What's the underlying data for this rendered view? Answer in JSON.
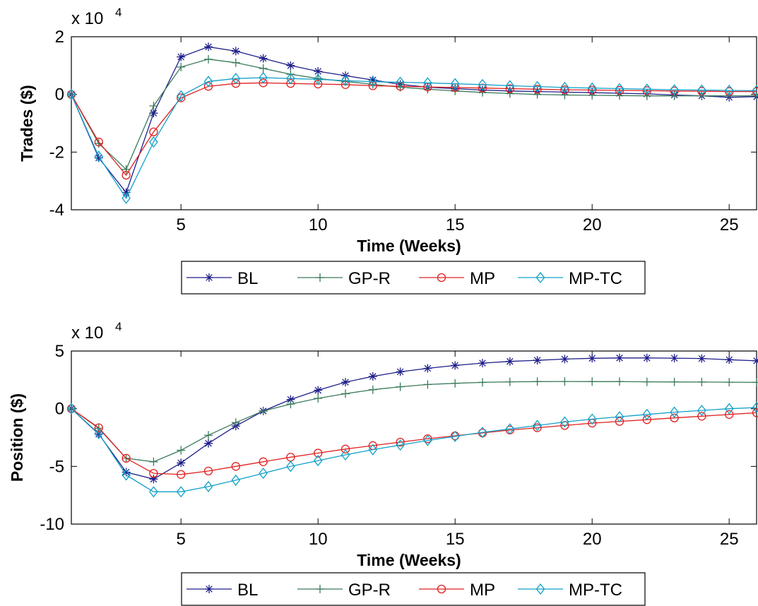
{
  "chart_data": [
    {
      "type": "line",
      "title": "",
      "xlabel": "Time (Weeks)",
      "ylabel": "Trades ($)",
      "y_multiplier_label": "x 10",
      "y_multiplier_exponent": "4",
      "xlim": [
        1,
        26
      ],
      "ylim": [
        -4,
        2
      ],
      "xticks": [
        5,
        10,
        15,
        20,
        25
      ],
      "yticks": [
        -4,
        -2,
        0,
        2
      ],
      "grid": false,
      "legend_position": "below",
      "x": [
        1,
        2,
        3,
        4,
        5,
        6,
        7,
        8,
        9,
        10,
        11,
        12,
        13,
        14,
        15,
        16,
        17,
        18,
        19,
        20,
        21,
        22,
        23,
        24,
        25,
        26
      ],
      "series": [
        {
          "name": "BL",
          "color": "#1f1f8a",
          "marker": "star",
          "values": [
            0,
            -2.2,
            -3.4,
            -0.65,
            1.3,
            1.65,
            1.5,
            1.25,
            1.0,
            0.8,
            0.65,
            0.5,
            0.35,
            0.25,
            0.2,
            0.15,
            0.12,
            0.1,
            0.08,
            0.06,
            0.04,
            0.02,
            -0.02,
            -0.05,
            -0.1,
            -0.08
          ]
        },
        {
          "name": "GP-R",
          "color": "#3a7a5a",
          "marker": "plus",
          "values": [
            0,
            -1.7,
            -2.6,
            -0.4,
            0.95,
            1.22,
            1.1,
            0.9,
            0.7,
            0.55,
            0.45,
            0.35,
            0.25,
            0.18,
            0.12,
            0.07,
            0.03,
            0.0,
            -0.02,
            -0.03,
            -0.04,
            -0.05,
            -0.05,
            -0.05,
            -0.05,
            -0.05
          ]
        },
        {
          "name": "MP",
          "color": "#e02020",
          "marker": "circle",
          "values": [
            0,
            -1.65,
            -2.8,
            -1.3,
            -0.12,
            0.28,
            0.38,
            0.4,
            0.38,
            0.36,
            0.34,
            0.3,
            0.28,
            0.26,
            0.24,
            0.22,
            0.2,
            0.18,
            0.16,
            0.15,
            0.14,
            0.13,
            0.12,
            0.11,
            0.1,
            0.1
          ]
        },
        {
          "name": "MP-TC",
          "color": "#12a0c8",
          "marker": "diamond",
          "values": [
            0,
            -2.15,
            -3.6,
            -1.65,
            -0.05,
            0.45,
            0.55,
            0.58,
            0.55,
            0.52,
            0.48,
            0.44,
            0.42,
            0.4,
            0.37,
            0.34,
            0.3,
            0.27,
            0.24,
            0.22,
            0.2,
            0.18,
            0.16,
            0.15,
            0.14,
            0.13
          ]
        }
      ]
    },
    {
      "type": "line",
      "title": "",
      "xlabel": "Time (Weeks)",
      "ylabel": "Position ($)",
      "y_multiplier_label": "x 10",
      "y_multiplier_exponent": "4",
      "xlim": [
        1,
        26
      ],
      "ylim": [
        -10,
        5
      ],
      "xticks": [
        5,
        10,
        15,
        20,
        25
      ],
      "yticks": [
        -10,
        -5,
        0,
        5
      ],
      "grid": false,
      "legend_position": "below",
      "x": [
        1,
        2,
        3,
        4,
        5,
        6,
        7,
        8,
        9,
        10,
        11,
        12,
        13,
        14,
        15,
        16,
        17,
        18,
        19,
        20,
        21,
        22,
        23,
        24,
        25,
        26
      ],
      "series": [
        {
          "name": "BL",
          "color": "#1f1f8a",
          "marker": "star",
          "values": [
            0,
            -2.2,
            -5.5,
            -6.1,
            -4.7,
            -3.0,
            -1.5,
            -0.2,
            0.8,
            1.6,
            2.3,
            2.8,
            3.2,
            3.5,
            3.75,
            3.95,
            4.1,
            4.2,
            4.3,
            4.37,
            4.4,
            4.4,
            4.38,
            4.35,
            4.25,
            4.15
          ]
        },
        {
          "name": "GP-R",
          "color": "#3a7a5a",
          "marker": "plus",
          "values": [
            0,
            -1.7,
            -4.3,
            -4.6,
            -3.6,
            -2.3,
            -1.2,
            -0.2,
            0.4,
            0.9,
            1.3,
            1.65,
            1.9,
            2.1,
            2.2,
            2.28,
            2.33,
            2.35,
            2.36,
            2.35,
            2.35,
            2.33,
            2.32,
            2.31,
            2.3,
            2.28
          ]
        },
        {
          "name": "MP",
          "color": "#e02020",
          "marker": "circle",
          "values": [
            0,
            -1.65,
            -4.3,
            -5.6,
            -5.7,
            -5.4,
            -5.0,
            -4.6,
            -4.2,
            -3.85,
            -3.5,
            -3.2,
            -2.9,
            -2.6,
            -2.35,
            -2.1,
            -1.85,
            -1.65,
            -1.45,
            -1.25,
            -1.1,
            -0.95,
            -0.8,
            -0.65,
            -0.5,
            -0.35
          ]
        },
        {
          "name": "MP-TC",
          "color": "#12a0c8",
          "marker": "diamond",
          "values": [
            0,
            -2.15,
            -5.75,
            -7.2,
            -7.2,
            -6.75,
            -6.2,
            -5.6,
            -5.0,
            -4.5,
            -4.0,
            -3.55,
            -3.15,
            -2.75,
            -2.4,
            -2.05,
            -1.75,
            -1.45,
            -1.15,
            -0.9,
            -0.7,
            -0.5,
            -0.3,
            -0.15,
            0.0,
            0.1
          ]
        }
      ]
    }
  ]
}
